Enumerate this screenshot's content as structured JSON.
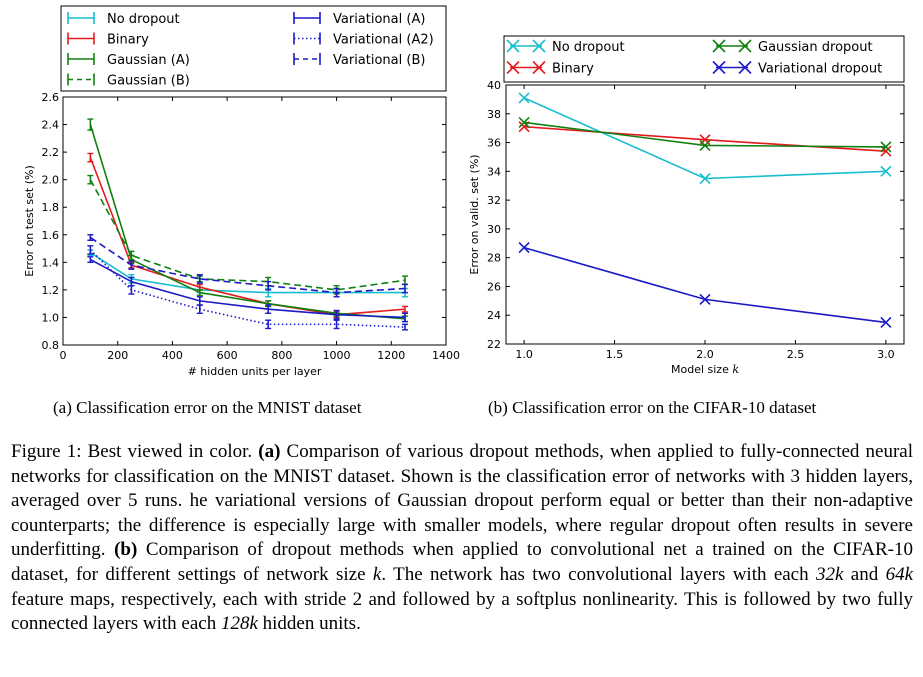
{
  "chart_data": [
    {
      "type": "line",
      "xlabel": "# hidden units per layer",
      "ylabel": "Error on test set (%)",
      "xlim": [
        0,
        1400
      ],
      "ylim": [
        0.8,
        2.6
      ],
      "xticks": [
        "0",
        "200",
        "400",
        "600",
        "800",
        "1000",
        "1200",
        "1400"
      ],
      "yticks": [
        "0.8",
        "1.0",
        "1.2",
        "1.4",
        "1.6",
        "1.8",
        "2.0",
        "2.2",
        "2.4",
        "2.6"
      ],
      "grid": false,
      "legend_position": "top",
      "x": [
        100,
        250,
        500,
        750,
        1000,
        1250
      ],
      "series": [
        {
          "name": "No dropout",
          "color": "#17becf",
          "style": "solid",
          "values": [
            1.47,
            1.28,
            1.2,
            1.18,
            1.18,
            1.18
          ],
          "err": [
            0.02,
            0.03,
            0.02,
            0.03,
            0.03,
            0.03
          ]
        },
        {
          "name": "Binary",
          "color": "#e41a1c",
          "style": "solid",
          "values": [
            2.16,
            1.38,
            1.22,
            1.1,
            1.02,
            1.06
          ],
          "err": [
            0.03,
            0.02,
            0.02,
            0.02,
            0.02,
            0.02
          ]
        },
        {
          "name": "Gaussian (A)",
          "color": "#108010",
          "style": "solid",
          "values": [
            2.4,
            1.42,
            1.18,
            1.1,
            1.03,
            0.99
          ],
          "err": [
            0.04,
            0.03,
            0.02,
            0.02,
            0.02,
            0.02
          ]
        },
        {
          "name": "Gaussian (B)",
          "color": "#108010",
          "style": "dashed",
          "values": [
            2.0,
            1.45,
            1.28,
            1.26,
            1.2,
            1.27
          ],
          "err": [
            0.03,
            0.03,
            0.02,
            0.03,
            0.03,
            0.03
          ]
        },
        {
          "name": "Variational (A)",
          "color": "#1a1ac8",
          "style": "solid",
          "values": [
            1.42,
            1.26,
            1.12,
            1.06,
            1.02,
            1.0
          ],
          "err": [
            0.02,
            0.03,
            0.03,
            0.03,
            0.03,
            0.03
          ]
        },
        {
          "name": "Variational (A2)",
          "color": "#1a1ac8",
          "style": "dotted",
          "values": [
            1.49,
            1.2,
            1.06,
            0.95,
            0.95,
            0.93
          ],
          "err": [
            0.03,
            0.03,
            0.03,
            0.03,
            0.03,
            0.02
          ]
        },
        {
          "name": "Variational (B)",
          "color": "#1a1ac8",
          "style": "dashed",
          "values": [
            1.58,
            1.38,
            1.28,
            1.23,
            1.18,
            1.21
          ],
          "err": [
            0.02,
            0.03,
            0.03,
            0.03,
            0.03,
            0.03
          ]
        }
      ],
      "legend_order": [
        0,
        4,
        1,
        5,
        2,
        6,
        3
      ],
      "caption": "(a) Classification error on the MNIST dataset"
    },
    {
      "type": "line",
      "xlabel": "Model size ",
      "xlabel_var": "k",
      "ylabel": "Error on valid. set (%)",
      "xlim": [
        0.9,
        3.1
      ],
      "ylim": [
        22,
        40
      ],
      "xticks": [
        "1.0",
        "1.5",
        "2.0",
        "2.5",
        "3.0"
      ],
      "xtick_values": [
        1.0,
        1.5,
        2.0,
        2.5,
        3.0
      ],
      "yticks": [
        "22",
        "24",
        "26",
        "28",
        "30",
        "32",
        "34",
        "36",
        "38",
        "40"
      ],
      "grid": false,
      "legend_position": "top",
      "x": [
        1.0,
        2.0,
        3.0
      ],
      "series": [
        {
          "name": "No dropout",
          "color": "#17becf",
          "values": [
            39.1,
            33.5,
            34.0
          ]
        },
        {
          "name": "Binary",
          "color": "#e41a1c",
          "values": [
            37.1,
            36.2,
            35.4
          ]
        },
        {
          "name": "Gaussian dropout",
          "color": "#108010",
          "values": [
            37.4,
            35.8,
            35.7
          ]
        },
        {
          "name": "Variational dropout",
          "color": "#1a1ac8",
          "values": [
            28.7,
            25.1,
            23.5
          ]
        }
      ],
      "legend_order": [
        0,
        2,
        1,
        3
      ],
      "caption": "(b) Classification error on the CIFAR-10 dataset"
    }
  ],
  "caption": {
    "label": "Figure 1: Best viewed in color. ",
    "a_tag": "(a)",
    "a_text": " Comparison of various dropout methods, when applied to fully-connected neural networks for classification on the MNIST dataset.  Shown is the classification error of networks with 3 hidden layers, averaged over 5 runs. he variational versions of Gaussian dropout perform equal or better than their non-adaptive counterparts; the difference is especially large with smaller models, where regular dropout often results in severe underfitting. ",
    "b_tag": "(b)",
    "b_text_1": " Comparison of dropout methods when applied to convolutional net a trained on the CIFAR-10 dataset, for different settings of network size ",
    "b_var_1": "k",
    "b_text_2": ". The network has two convolutional layers with each ",
    "b_var_2": "32k",
    "b_text_3": " and ",
    "b_var_3": "64k",
    "b_text_4": " feature maps, respectively, each with stride 2 and followed by a softplus nonlinearity. This is followed by two fully connected layers with each ",
    "b_var_4": "128k",
    "b_text_5": " hidden units."
  }
}
